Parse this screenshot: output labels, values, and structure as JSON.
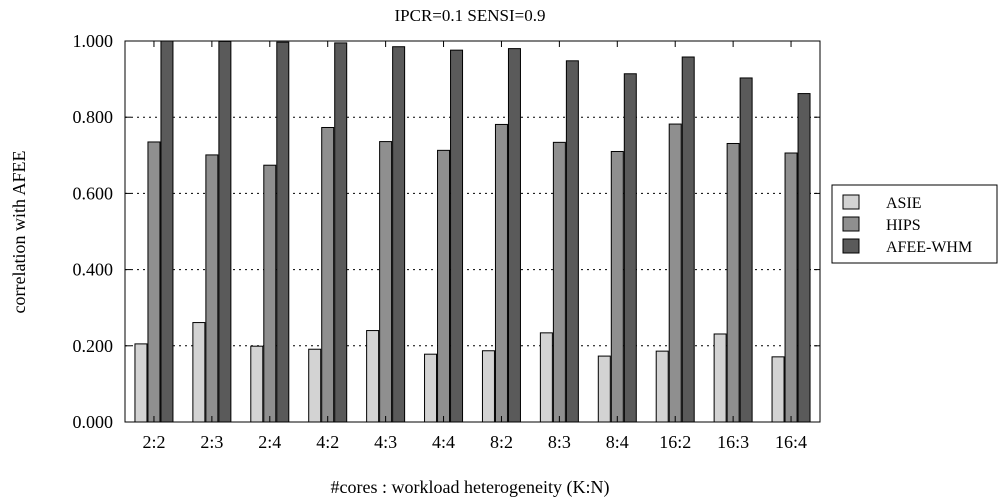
{
  "chart_data": {
    "type": "bar",
    "title": "IPCR=0.1 SENSI=0.9",
    "xlabel": "#cores : workload heterogeneity (K:N)",
    "ylabel": "correlation with AFEE",
    "ylim": [
      0,
      1
    ],
    "yticks": [
      "0.000",
      "0.200",
      "0.400",
      "0.600",
      "0.800",
      "1.000"
    ],
    "ytick_values": [
      0,
      0.2,
      0.4,
      0.6,
      0.8,
      1.0
    ],
    "grid": "horizontal dotted",
    "legend_position": "right",
    "categories": [
      "2:2",
      "2:3",
      "2:4",
      "4:2",
      "4:3",
      "4:4",
      "8:2",
      "8:3",
      "8:4",
      "16:2",
      "16:3",
      "16:4"
    ],
    "series": [
      {
        "name": "ASIE",
        "color": "#d3d3d3",
        "values": [
          0.205,
          0.261,
          0.199,
          0.191,
          0.24,
          0.178,
          0.187,
          0.234,
          0.173,
          0.186,
          0.231,
          0.171
        ]
      },
      {
        "name": "HIPS",
        "color": "#8f8f8f",
        "values": [
          0.735,
          0.701,
          0.674,
          0.773,
          0.736,
          0.713,
          0.781,
          0.734,
          0.71,
          0.782,
          0.731,
          0.706
        ]
      },
      {
        "name": "AFEE-WHM",
        "color": "#5a5a5a",
        "values": [
          1.0,
          0.999,
          0.997,
          0.995,
          0.985,
          0.976,
          0.98,
          0.948,
          0.914,
          0.958,
          0.903,
          0.862
        ]
      }
    ]
  }
}
